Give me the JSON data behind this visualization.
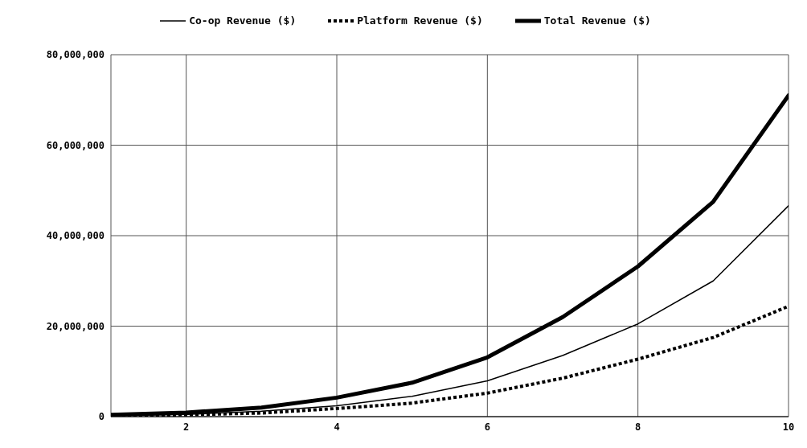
{
  "chart_data": {
    "type": "line",
    "x": [
      1,
      2,
      3,
      4,
      5,
      6,
      7,
      8,
      9,
      10
    ],
    "series": [
      {
        "name": "Co-op Revenue ($)",
        "color": "#000000",
        "line_style": "solid",
        "values": [
          200000,
          500000,
          1200000,
          2400000,
          4500000,
          7900000,
          13500000,
          20500000,
          30000000,
          46600000
        ]
      },
      {
        "name": "Platform Revenue ($)",
        "color": "#000000",
        "line_style": "dotted",
        "values": [
          200000,
          400000,
          800000,
          1800000,
          3000000,
          5200000,
          8500000,
          12700000,
          17500000,
          24400000
        ]
      },
      {
        "name": "Total Revenue ($)",
        "color": "#000000",
        "line_style": "solid",
        "values": [
          400000,
          900000,
          2000000,
          4200000,
          7500000,
          13100000,
          22000000,
          33200000,
          47500000,
          71000000
        ]
      }
    ],
    "xlim": [
      1,
      10
    ],
    "xticks": [
      2,
      4,
      6,
      8,
      10
    ],
    "ylim": [
      0,
      80000000
    ],
    "yticks": [
      0,
      {
        "value": 20000000,
        "label": "20,000,000"
      },
      {
        "value": 40000000,
        "label": "40,000,000"
      },
      {
        "value": 60000000,
        "label": "60,000,000"
      },
      {
        "value": 80000000,
        "label": "80,000,000"
      }
    ],
    "grid": true,
    "legend": "top",
    "marker": "none"
  }
}
